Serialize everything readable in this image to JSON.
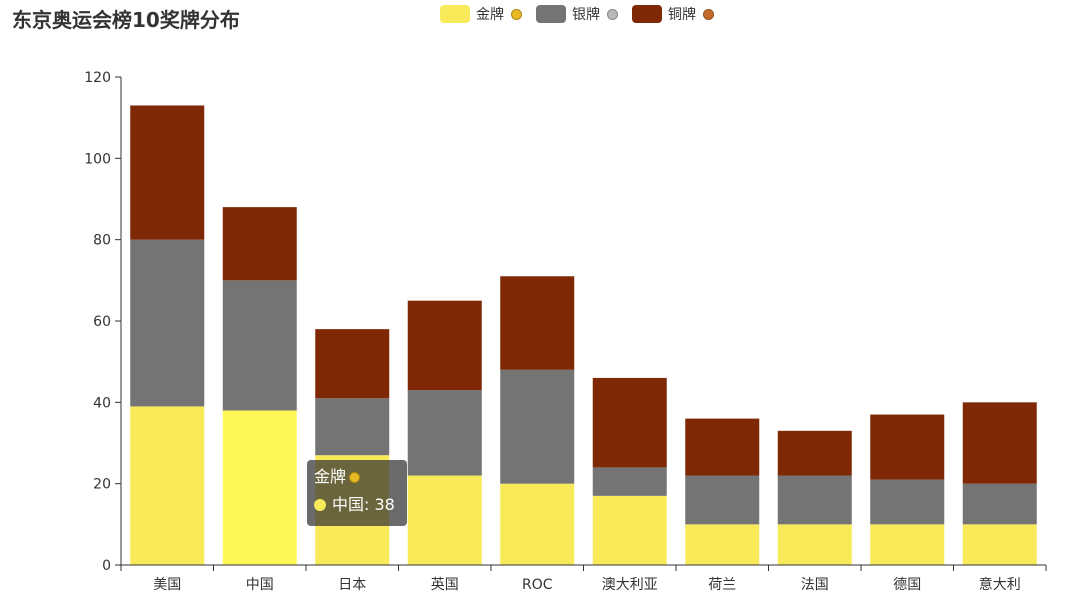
{
  "title": "东京奥运会榜10奖牌分布",
  "legend": [
    {
      "label": "金牌",
      "color": "#f9ea59",
      "medal_icon": "gold-medal-icon",
      "medal_color": "#e8b923"
    },
    {
      "label": "银牌",
      "color": "#747474",
      "medal_icon": "silver-medal-icon",
      "medal_color": "#b8b8b8"
    },
    {
      "label": "铜牌",
      "color": "#7e2806",
      "medal_icon": "bronze-medal-icon",
      "medal_color": "#c36b2c"
    }
  ],
  "tooltip": {
    "series": "金牌",
    "category": "中国",
    "value": "38",
    "text": "中国: 38",
    "dot_color": "#f9ea59"
  },
  "chart_data": {
    "type": "bar",
    "stacked": true,
    "categories": [
      "美国",
      "中国",
      "日本",
      "英国",
      "ROC",
      "澳大利亚",
      "荷兰",
      "法国",
      "德国",
      "意大利"
    ],
    "series": [
      {
        "name": "金牌",
        "values": [
          39,
          38,
          27,
          22,
          20,
          17,
          10,
          10,
          10,
          10
        ]
      },
      {
        "name": "银牌",
        "values": [
          41,
          32,
          14,
          21,
          28,
          7,
          12,
          12,
          11,
          10
        ]
      },
      {
        "name": "铜牌",
        "values": [
          33,
          18,
          17,
          22,
          23,
          22,
          14,
          11,
          16,
          20
        ]
      }
    ],
    "colors": [
      "#f9ea59",
      "#747474",
      "#7e2806"
    ],
    "highlight_color": "#fff958",
    "highlight": {
      "category": "中国",
      "series": "金牌"
    },
    "ylim": [
      0,
      120
    ],
    "yticks": [
      0,
      20,
      40,
      60,
      80,
      100,
      120
    ],
    "grid": false,
    "legend_position": "top-center"
  }
}
